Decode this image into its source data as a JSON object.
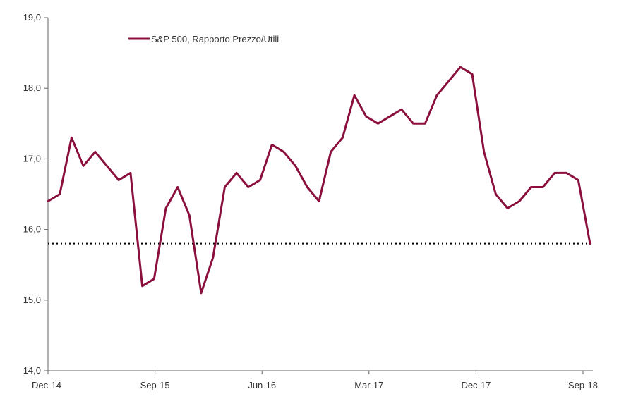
{
  "chart_data": {
    "type": "line",
    "title": "",
    "xlabel": "",
    "ylabel": "",
    "x_tick_labels": [
      "Dec-14",
      "Sep-15",
      "Jun-16",
      "Mar-17",
      "Dec-17",
      "Sep-18"
    ],
    "y_tick_labels": [
      "14,0",
      "15,0",
      "16,0",
      "17,0",
      "18,0",
      "19,0"
    ],
    "ylim": [
      14.0,
      19.0
    ],
    "grid": false,
    "legend_position": "top-left",
    "series": [
      {
        "name": "S&P 500, Rapporto Prezzo/Utili",
        "color": "#8a0f3c",
        "x": [
          "2014-12",
          "2015-01",
          "2015-02",
          "2015-03",
          "2015-04",
          "2015-05",
          "2015-06",
          "2015-07",
          "2015-08",
          "2015-09",
          "2015-10",
          "2015-11",
          "2015-12",
          "2016-01",
          "2016-02",
          "2016-03",
          "2016-04",
          "2016-05",
          "2016-06",
          "2016-07",
          "2016-08",
          "2016-09",
          "2016-10",
          "2016-11",
          "2016-12",
          "2017-01",
          "2017-02",
          "2017-03",
          "2017-04",
          "2017-05",
          "2017-06",
          "2017-07",
          "2017-08",
          "2017-09",
          "2017-10",
          "2017-11",
          "2017-12",
          "2018-01",
          "2018-02",
          "2018-03",
          "2018-04",
          "2018-05",
          "2018-06",
          "2018-07",
          "2018-08",
          "2018-09",
          "2018-10"
        ],
        "values": [
          16.4,
          16.5,
          17.3,
          16.9,
          17.1,
          16.9,
          16.7,
          16.8,
          15.2,
          15.3,
          16.3,
          16.6,
          16.2,
          15.1,
          15.6,
          16.6,
          16.8,
          16.6,
          16.7,
          17.2,
          17.1,
          16.9,
          16.6,
          16.4,
          17.1,
          17.3,
          17.9,
          17.6,
          17.5,
          17.6,
          17.7,
          17.5,
          17.5,
          17.9,
          18.1,
          18.3,
          18.2,
          17.1,
          16.5,
          16.3,
          16.4,
          16.6,
          16.6,
          16.8,
          16.8,
          16.7,
          15.8
        ]
      }
    ],
    "reference_line": {
      "value": 15.8,
      "style": "dotted",
      "color": "#000000"
    }
  }
}
